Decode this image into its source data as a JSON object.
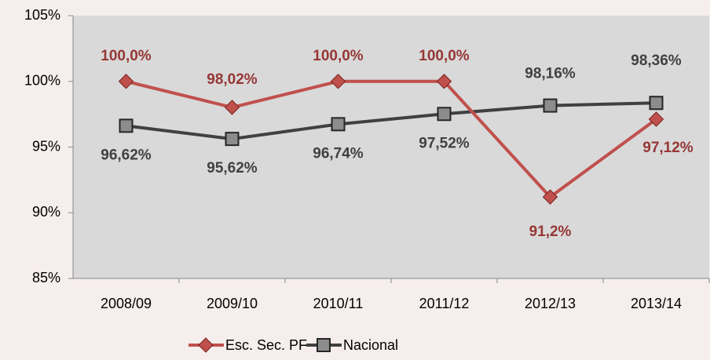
{
  "chart_data": {
    "type": "line",
    "categories": [
      "2008/09",
      "2009/10",
      "2010/11",
      "2011/12",
      "2012/13",
      "2013/14"
    ],
    "series": [
      {
        "name": "Esc. Sec. PF",
        "color": "#c0504d",
        "marker": "diamond",
        "label_color": "#953735",
        "values": [
          100.0,
          98.02,
          100.0,
          100.0,
          91.2,
          97.12
        ],
        "value_labels": [
          "100,0%",
          "98,02%",
          "100,0%",
          "100,0%",
          "91,2%",
          "97,12%"
        ]
      },
      {
        "name": "Nacional",
        "color": "#404040",
        "marker": "square",
        "label_color": "#404040",
        "values": [
          96.62,
          95.62,
          96.74,
          97.52,
          98.16,
          98.36
        ],
        "value_labels": [
          "96,62%",
          "95,62%",
          "96,74%",
          "97,52%",
          "98,16%",
          "98,36%"
        ]
      }
    ],
    "ylim": [
      85,
      105
    ],
    "yticks": [
      {
        "value": 85,
        "label": "85%"
      },
      {
        "value": 90,
        "label": "90%"
      },
      {
        "value": 95,
        "label": "95%"
      },
      {
        "value": 100,
        "label": "100%"
      },
      {
        "value": 105,
        "label": "105%"
      }
    ],
    "legend": "bottom"
  }
}
